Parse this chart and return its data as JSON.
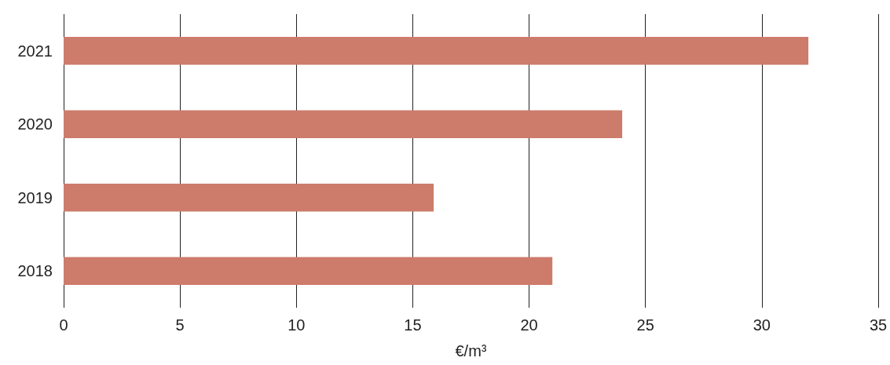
{
  "chart_data": {
    "type": "bar",
    "orientation": "horizontal",
    "categories": [
      "2021",
      "2020",
      "2019",
      "2018"
    ],
    "values": [
      32,
      24,
      15.9,
      21
    ],
    "color": "#cd7b6b",
    "xlabel": "€/m³",
    "xlim": [
      0,
      35
    ],
    "xticks": [
      0,
      5,
      10,
      15,
      20,
      25,
      30,
      35
    ],
    "grid": "x"
  }
}
